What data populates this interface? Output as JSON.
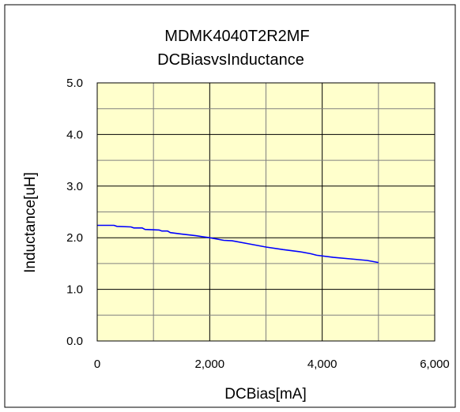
{
  "chart_data": {
    "type": "line",
    "title": "MDMK4040T2R2MF",
    "subtitle": "DCBiasvsInductance",
    "xlabel": "DCBias[mA]",
    "ylabel": "Inductance[uH]",
    "xlim": [
      0,
      6000
    ],
    "ylim": [
      0,
      5.0
    ],
    "x_ticks": [
      0,
      2000,
      4000,
      6000
    ],
    "x_tick_labels": [
      "0",
      "2,000",
      "4,000",
      "6,000"
    ],
    "y_ticks": [
      0,
      1.0,
      2.0,
      3.0,
      4.0,
      5.0
    ],
    "y_tick_labels": [
      "0.0",
      "1.0",
      "2.0",
      "3.0",
      "4.0",
      "5.0"
    ],
    "grid": true,
    "plot_background": "#ffffcc",
    "series": [
      {
        "color": "#0000ff",
        "x": [
          0,
          300,
          350,
          600,
          650,
          800,
          850,
          1100,
          1150,
          1250,
          1300,
          1500,
          1750,
          2000,
          2250,
          2400,
          2700,
          3000,
          3300,
          3600,
          3800,
          3900,
          4200,
          4500,
          4800,
          5000
        ],
        "y": [
          2.24,
          2.24,
          2.22,
          2.21,
          2.19,
          2.19,
          2.16,
          2.15,
          2.13,
          2.13,
          2.1,
          2.07,
          2.04,
          2.0,
          1.95,
          1.94,
          1.88,
          1.82,
          1.77,
          1.73,
          1.69,
          1.66,
          1.62,
          1.59,
          1.56,
          1.52
        ]
      }
    ]
  }
}
